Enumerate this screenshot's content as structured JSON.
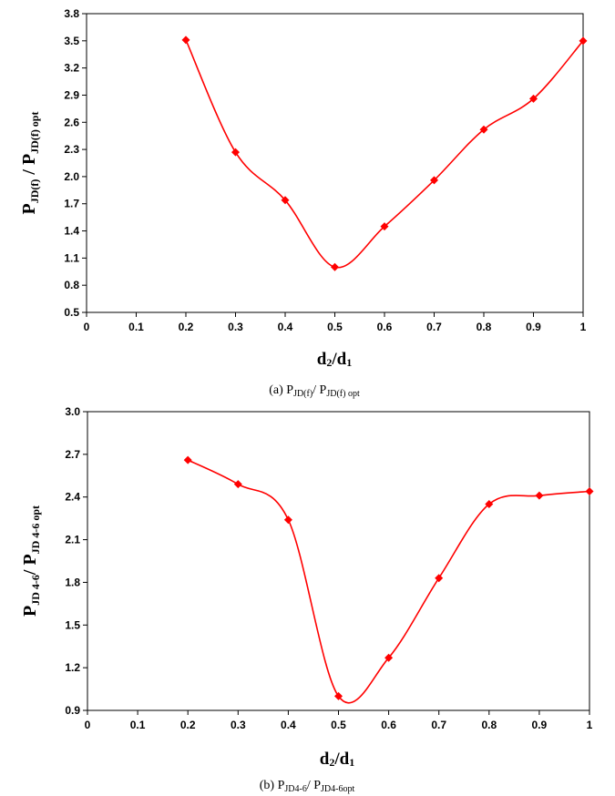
{
  "chart_data": [
    {
      "type": "line",
      "series_color": "#ff0000",
      "marker": "diamond",
      "smooth": true,
      "x": [
        0.2,
        0.3,
        0.4,
        0.5,
        0.6,
        0.7,
        0.8,
        0.9,
        1.0
      ],
      "y": [
        3.51,
        2.27,
        1.74,
        1.0,
        1.45,
        1.96,
        2.52,
        2.86,
        3.5
      ],
      "xlim": [
        0,
        1
      ],
      "ylim": [
        0.5,
        3.8
      ],
      "x_ticks": [
        "0",
        "0.1",
        "0.2",
        "0.3",
        "0.4",
        "0.5",
        "0.6",
        "0.7",
        "0.8",
        "0.9",
        "1"
      ],
      "y_ticks": [
        "0.5",
        "0.8",
        "1.1",
        "1.4",
        "1.7",
        "2.0",
        "2.3",
        "2.6",
        "2.9",
        "3.2",
        "3.5",
        "3.8"
      ],
      "xlabel": {
        "main": "d",
        "sub1": "2",
        "slash": "/d",
        "sub2": "1"
      },
      "ylabel": {
        "p1": "P",
        "s1": "JD(f)",
        "mid": " / P",
        "s2": "JD(f)  opt"
      },
      "caption": {
        "pre": "(a) P",
        "s1": "JD(f)",
        "mid": "/ P",
        "s2": "JD(f) opt"
      },
      "grid": false,
      "legend": "none"
    },
    {
      "type": "line",
      "series_color": "#ff0000",
      "marker": "diamond",
      "smooth": true,
      "x": [
        0.2,
        0.3,
        0.4,
        0.5,
        0.6,
        0.7,
        0.8,
        0.9,
        1.0
      ],
      "y": [
        2.66,
        2.49,
        2.24,
        1.0,
        1.27,
        1.83,
        2.35,
        2.41,
        2.44
      ],
      "xlim": [
        0,
        1
      ],
      "ylim": [
        0.9,
        3.0
      ],
      "x_ticks": [
        "0",
        "0.1",
        "0.2",
        "0.3",
        "0.4",
        "0.5",
        "0.6",
        "0.7",
        "0.8",
        "0.9",
        "1"
      ],
      "y_ticks": [
        "0.9",
        "1.2",
        "1.5",
        "1.8",
        "2.1",
        "2.4",
        "2.7",
        "3.0"
      ],
      "xlabel": {
        "main": "d",
        "sub1": "2",
        "slash": "/d",
        "sub2": "1"
      },
      "ylabel": {
        "p1": "P",
        "s1": "JD  4-6",
        "mid": "/ P",
        "s2": "JD  4-6  opt"
      },
      "caption": {
        "pre": "(b) P",
        "s1": "JD4-6",
        "mid": "/ P",
        "s2": "JD4-6opt"
      },
      "grid": false,
      "legend": "none"
    }
  ]
}
